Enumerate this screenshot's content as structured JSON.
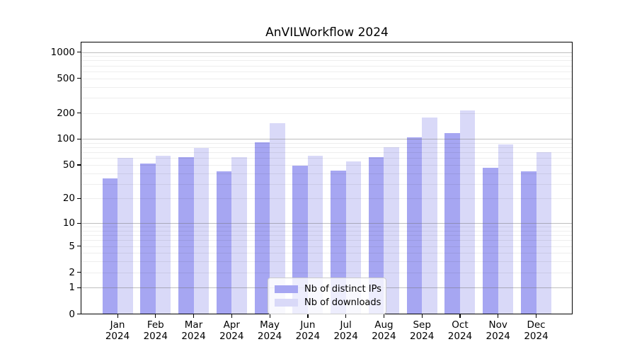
{
  "title": "AnVILWorkflow 2024",
  "chart_data": {
    "type": "bar",
    "title": "AnVILWorkflow 2024",
    "categories": [
      "Jan",
      "Feb",
      "Mar",
      "Apr",
      "May",
      "Jun",
      "Jul",
      "Aug",
      "Sep",
      "Oct",
      "Nov",
      "Dec"
    ],
    "category_year": "2024",
    "series": [
      {
        "name": "Nb of distinct IPs",
        "color": "#a6a6f2",
        "values": [
          35,
          52,
          62,
          42,
          92,
          49,
          43,
          61,
          105,
          117,
          46,
          42
        ]
      },
      {
        "name": "Nb of downloads",
        "color": "#d9d9f8",
        "values": [
          60,
          64,
          79,
          62,
          152,
          64,
          55,
          80,
          176,
          212,
          87,
          70
        ]
      }
    ],
    "xlabel": "",
    "ylabel": "",
    "yscale": "log1p",
    "ylim": [
      0,
      1300
    ],
    "ytick_values": [
      1000,
      500,
      200,
      100,
      50,
      20,
      10,
      5,
      2,
      1,
      0
    ],
    "grid_major_values": [
      1,
      10,
      100,
      1000
    ],
    "grid_minor_values": [
      2,
      3,
      4,
      6,
      7,
      8,
      9,
      5,
      20,
      30,
      40,
      60,
      70,
      80,
      90,
      50,
      200,
      300,
      400,
      600,
      700,
      800,
      900,
      500
    ],
    "grid": "on",
    "legend_position": "lower center",
    "legend_items": [
      "Nb of distinct IPs",
      "Nb of downloads"
    ]
  }
}
